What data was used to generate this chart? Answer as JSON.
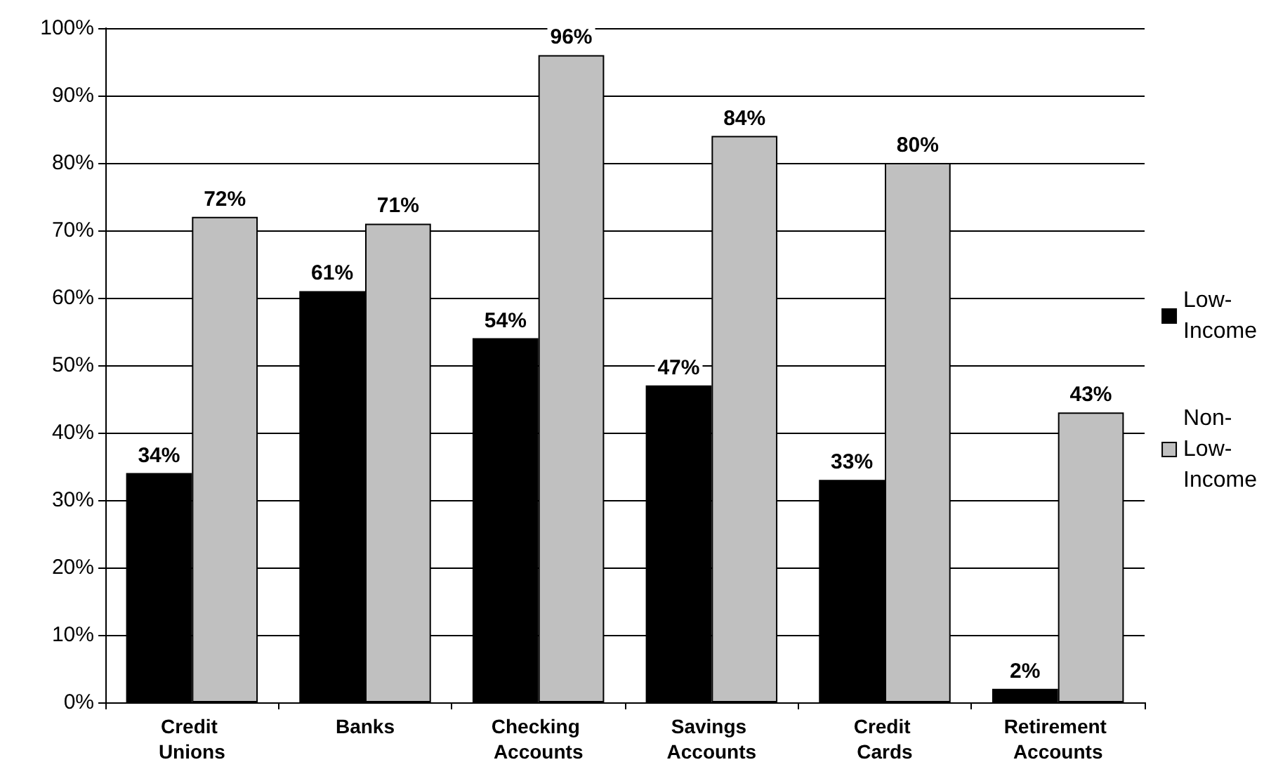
{
  "chart_data": {
    "type": "bar",
    "categories": [
      "Credit Unions",
      "Banks",
      "Checking Accounts",
      "Savings Accounts",
      "Credit Cards",
      "Retirement Accounts"
    ],
    "series": [
      {
        "name": "Low-Income",
        "color": "#000000",
        "values": [
          34,
          61,
          54,
          47,
          33,
          2
        ],
        "value_labels": [
          "34%",
          "61%",
          "54%",
          "47%",
          "33%",
          "2%"
        ]
      },
      {
        "name": "Non-Low-Income",
        "color": "#c0c0c0",
        "values": [
          72,
          71,
          96,
          84,
          80,
          43
        ],
        "value_labels": [
          "72%",
          "71%",
          "96%",
          "84%",
          "80%",
          "43%"
        ]
      }
    ],
    "ylim": [
      0,
      100
    ],
    "yticks": [
      {
        "value": 0,
        "label": "0%"
      },
      {
        "value": 10,
        "label": "10%"
      },
      {
        "value": 20,
        "label": "20%"
      },
      {
        "value": 30,
        "label": "30%"
      },
      {
        "value": 40,
        "label": "40%"
      },
      {
        "value": 50,
        "label": "50%"
      },
      {
        "value": 60,
        "label": "60%"
      },
      {
        "value": 70,
        "label": "70%"
      },
      {
        "value": 80,
        "label": "80%"
      },
      {
        "value": 90,
        "label": "90%"
      },
      {
        "value": 100,
        "label": "100%"
      }
    ],
    "grid": "y",
    "legend": "right"
  }
}
